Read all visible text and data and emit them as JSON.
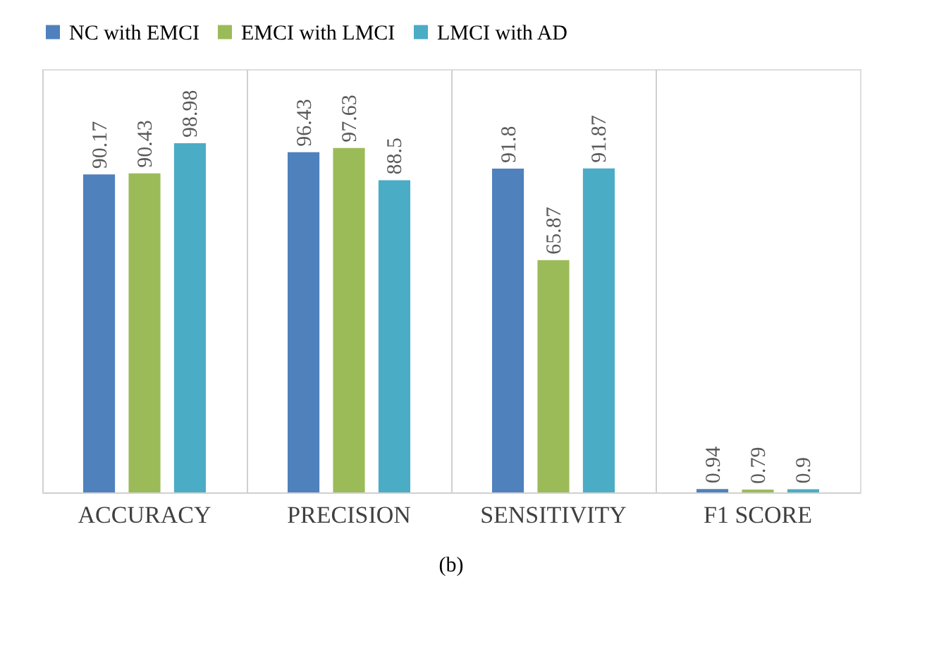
{
  "chart_data": {
    "type": "bar",
    "categories": [
      "ACCURACY",
      "PRECISION",
      "SENSITIVITY",
      "F1 SCORE"
    ],
    "series": [
      {
        "name": "NC with EMCI",
        "color": "#4f81bd",
        "values": [
          90.17,
          96.43,
          91.8,
          0.94
        ]
      },
      {
        "name": "EMCI with LMCI",
        "color": "#9bbb59",
        "values": [
          90.43,
          97.63,
          65.87,
          0.79
        ]
      },
      {
        "name": "LMCI with AD",
        "color": "#4bacc6",
        "values": [
          98.98,
          88.5,
          91.87,
          0.9
        ]
      }
    ],
    "ylim": [
      0,
      120
    ],
    "data_labels": true,
    "grid": "x",
    "legend": "top",
    "annotations": [
      "(b)"
    ]
  }
}
